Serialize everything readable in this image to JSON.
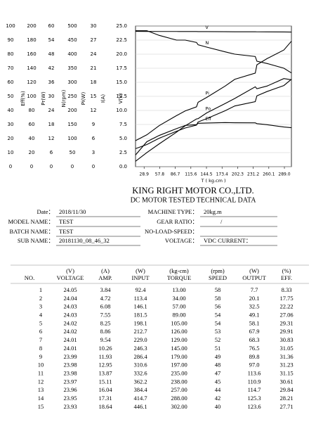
{
  "chart_data": {
    "type": "multi-axis-line",
    "axes": [
      {
        "label": "Eff(%)",
        "ylim": [
          0,
          100
        ],
        "yticks": [
          0,
          10,
          20,
          30,
          40,
          50,
          60,
          70,
          80,
          90,
          100
        ]
      },
      {
        "label": "Pr(W)",
        "ylim": [
          0,
          200
        ],
        "yticks": [
          0,
          20,
          40,
          60,
          80,
          100,
          120,
          140,
          160,
          180,
          200
        ]
      },
      {
        "label": "N(rpm)",
        "ylim": [
          0,
          60
        ],
        "yticks": [
          0,
          6,
          12,
          18,
          24,
          30,
          36,
          42,
          48,
          54,
          60
        ]
      },
      {
        "label": "Pi(W)",
        "ylim": [
          0,
          500
        ],
        "yticks": [
          0,
          50,
          100,
          150,
          200,
          250,
          300,
          350,
          400,
          450,
          500
        ]
      },
      {
        "label": "I(A)",
        "ylim": [
          0,
          30
        ],
        "yticks": [
          0,
          3,
          6,
          9,
          12,
          15,
          18,
          21,
          24,
          27,
          30
        ]
      },
      {
        "label": "V(V)",
        "ylim": [
          0,
          25
        ],
        "yticks": [
          {
            "value": 0,
            "label": "0.0"
          },
          2.5,
          {
            "value": 5,
            "label": "5.0"
          },
          7.5,
          {
            "value": 10,
            "label": "10.0"
          },
          12.5,
          {
            "value": 15,
            "label": "15.0"
          },
          17.5,
          {
            "value": 20,
            "label": "20.0"
          },
          22.5,
          {
            "value": 25,
            "label": "25.0"
          }
        ]
      }
    ],
    "grid": true,
    "xlabel": "T ( kg.cm )",
    "xlim": [
      13,
      302
    ],
    "xticks": [
      28.9,
      57.8,
      86.7,
      115.6,
      144.5,
      173.4,
      202.3,
      231.2,
      260.1,
      {
        "value": 289,
        "label": "289.0"
      }
    ],
    "x": [
      13,
      34,
      57,
      89,
      105,
      126,
      129,
      145,
      179,
      197,
      235,
      238,
      257,
      288,
      302
    ],
    "series": [
      {
        "name": "V",
        "axis": 5,
        "color": "#000000",
        "values": [
          24.05,
          24.04,
          24.03,
          24.03,
          24.02,
          24.02,
          24.01,
          24.01,
          23.99,
          23.98,
          23.98,
          23.97,
          23.96,
          23.95,
          23.93
        ]
      },
      {
        "name": "N",
        "axis": 2,
        "color": "#000000",
        "values": [
          58,
          58,
          56,
          54,
          54,
          53,
          52,
          51,
          49,
          48,
          47,
          45,
          44,
          42,
          40
        ]
      },
      {
        "name": "Pi",
        "axis": 3,
        "color": "#000000",
        "values": [
          92.4,
          113.4,
          146.1,
          181.5,
          198.1,
          212.7,
          229.0,
          246.3,
          286.4,
          310.6,
          332.6,
          362.2,
          384.4,
          414.7,
          446.1
        ]
      },
      {
        "name": "Po",
        "axis": 1,
        "color": "#000000",
        "values": [
          7.7,
          20.1,
          32.5,
          49.1,
          58.1,
          67.9,
          68.3,
          76.5,
          89.8,
          97.0,
          113.6,
          110.9,
          114.7,
          125.3,
          123.6
        ]
      },
      {
        "name": "Eff",
        "axis": 0,
        "color": "#000000",
        "values": [
          8.33,
          17.75,
          22.22,
          27.06,
          29.31,
          29.91,
          30.83,
          31.05,
          31.36,
          31.23,
          31.15,
          30.61,
          29.84,
          28.21,
          27.71
        ]
      },
      {
        "axis": 4,
        "color": "#000000",
        "values": [
          3.84,
          4.72,
          6.08,
          7.55,
          8.25,
          8.86,
          9.54,
          10.26,
          11.93,
          12.95,
          13.87,
          15.11,
          16.04,
          17.31,
          18.64
        ]
      }
    ]
  },
  "header": {
    "title": "KING RIGHT MOTOR CO.,LTD.",
    "subtitle": "DC MOTOR TESTED TECHNICAL DATA"
  },
  "info": {
    "left": [
      [
        "Date：",
        "2018/11/30"
      ],
      [
        "MODEL NAME：",
        "TEST"
      ],
      [
        "BATCH NAME：",
        "TEST"
      ],
      [
        "SUB NAME：",
        "20181130_08_46_32"
      ]
    ],
    "right": [
      [
        "MACHINE TYPE：",
        "20kg.m"
      ],
      [
        "GEAR RATIO：",
        "/"
      ],
      [
        "NO-LOAD-SPEED："
      ],
      [
        "VOLTAGE：",
        "VDC  CURRENT："
      ]
    ]
  },
  "table": {
    "units": [
      "(V)",
      "(A)",
      "(W)",
      "(kg-cm)",
      "(rpm)",
      "(W)",
      "(%)"
    ],
    "headers": [
      "NO.",
      "VOLTAGE",
      "AMP.",
      "INPUT",
      "TORQUE",
      "SPEED",
      "OUTPUT",
      "EFF."
    ],
    "rows": [
      [
        "1",
        "24.05",
        "3.84",
        "92.4",
        "13.00",
        "58",
        "7.7",
        "8.33"
      ],
      [
        "2",
        "24.04",
        "4.72",
        "113.4",
        "34.00",
        "58",
        "20.1",
        "17.75"
      ],
      [
        "3",
        "24.03",
        "6.08",
        "146.1",
        "57.00",
        "56",
        "32.5",
        "22.22"
      ],
      [
        "4",
        "24.03",
        "7.55",
        "181.5",
        "89.00",
        "54",
        "49.1",
        "27.06"
      ],
      [
        "5",
        "24.02",
        "8.25",
        "198.1",
        "105.00",
        "54",
        "58.1",
        "29.31"
      ],
      [
        "6",
        "24.02",
        "8.86",
        "212.7",
        "126.00",
        "53",
        "67.9",
        "29.91"
      ],
      [
        "7",
        "24.01",
        "9.54",
        "229.0",
        "129.00",
        "52",
        "68.3",
        "30.83"
      ],
      [
        "8",
        "24.01",
        "10.26",
        "246.3",
        "145.00",
        "51",
        "76.5",
        "31.05"
      ],
      [
        "9",
        "23.99",
        "11.93",
        "286.4",
        "179.00",
        "49",
        "89.8",
        "31.36"
      ],
      [
        "10",
        "23.98",
        "12.95",
        "310.6",
        "197.00",
        "48",
        "97.0",
        "31.23"
      ],
      [
        "11",
        "23.98",
        "13.87",
        "332.6",
        "235.00",
        "47",
        "113.6",
        "31.15"
      ],
      [
        "12",
        "23.97",
        "15.11",
        "362.2",
        "238.00",
        "45",
        "110.9",
        "30.61"
      ],
      [
        "13",
        "23.96",
        "16.04",
        "384.4",
        "257.00",
        "44",
        "114.7",
        "29.84"
      ],
      [
        "14",
        "23.95",
        "17.31",
        "414.7",
        "288.00",
        "42",
        "125.3",
        "28.21"
      ],
      [
        "15",
        "23.93",
        "18.64",
        "446.1",
        "302.00",
        "40",
        "123.6",
        "27.71"
      ]
    ]
  }
}
